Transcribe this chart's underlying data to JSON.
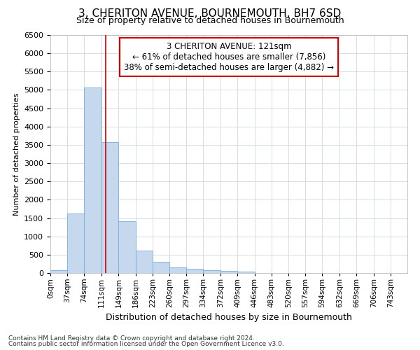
{
  "title": "3, CHERITON AVENUE, BOURNEMOUTH, BH7 6SD",
  "subtitle": "Size of property relative to detached houses in Bournemouth",
  "xlabel": "Distribution of detached houses by size in Bournemouth",
  "ylabel": "Number of detached properties",
  "footnote1": "Contains HM Land Registry data © Crown copyright and database right 2024.",
  "footnote2": "Contains public sector information licensed under the Open Government Licence v3.0.",
  "annotation_line1": "3 CHERITON AVENUE: 121sqm",
  "annotation_line2": "← 61% of detached houses are smaller (7,856)",
  "annotation_line3": "38% of semi-detached houses are larger (4,882) →",
  "bar_color": "#c5d8ee",
  "bar_edge_color": "#7aaed4",
  "vline_color": "#cc0000",
  "vline_x": 121,
  "categories": [
    "0sqm",
    "37sqm",
    "74sqm",
    "111sqm",
    "149sqm",
    "186sqm",
    "223sqm",
    "260sqm",
    "297sqm",
    "334sqm",
    "372sqm",
    "409sqm",
    "446sqm",
    "483sqm",
    "520sqm",
    "557sqm",
    "594sqm",
    "632sqm",
    "669sqm",
    "706sqm",
    "743sqm"
  ],
  "bin_edges": [
    0,
    37,
    74,
    111,
    149,
    186,
    223,
    260,
    297,
    334,
    372,
    409,
    446,
    483,
    520,
    557,
    594,
    632,
    669,
    706,
    743
  ],
  "bin_width": 37,
  "bar_values": [
    75,
    1630,
    5060,
    3580,
    1420,
    620,
    300,
    155,
    115,
    85,
    55,
    45,
    0,
    0,
    0,
    0,
    0,
    0,
    0,
    0,
    0
  ],
  "ylim": [
    0,
    6500
  ],
  "yticks": [
    0,
    500,
    1000,
    1500,
    2000,
    2500,
    3000,
    3500,
    4000,
    4500,
    5000,
    5500,
    6000,
    6500
  ],
  "box_color": "#cc0000",
  "background_color": "#ffffff",
  "grid_color": "#d0d8e8",
  "title_fontsize": 11,
  "subtitle_fontsize": 9,
  "xlabel_fontsize": 9,
  "ylabel_fontsize": 8,
  "tick_fontsize": 8,
  "xtick_fontsize": 7.5,
  "footnote_fontsize": 6.5,
  "ann_fontsize": 8.5
}
